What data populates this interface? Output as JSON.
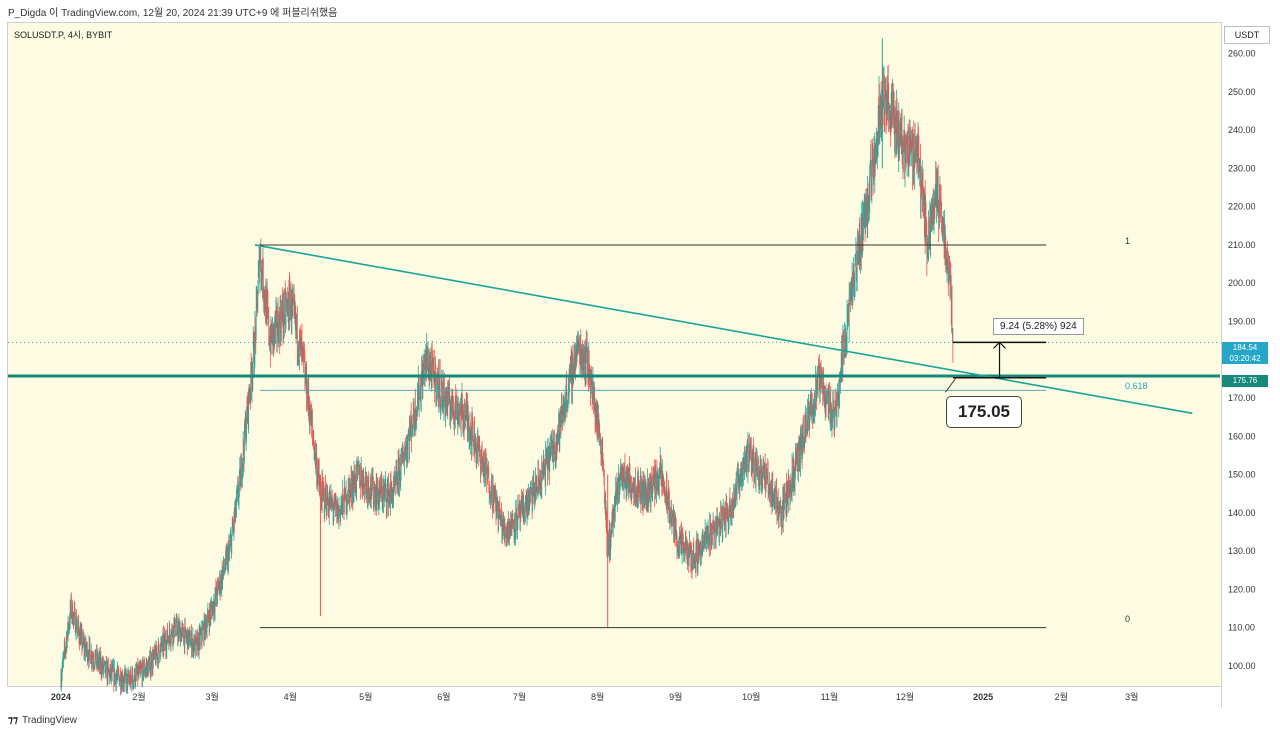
{
  "header": {
    "text": "P_Digda 이 TradingView.com, 12월 20, 2024 21:39 UTC+9 에 퍼블리쉬했음"
  },
  "symbol": {
    "text": "SOLUSDT.P, 4시, BYBIT"
  },
  "footer": {
    "brand": "TradingView",
    "logo": "tv-logo-icon"
  },
  "colors": {
    "background": "#fdfbe1",
    "up": "#26a69a",
    "down": "#ef5350",
    "trendline": "#1aa39a",
    "support": "#17897a",
    "priceTag": "#26a6c8"
  },
  "annotations": {
    "measure": "9.24 (5.28%) 924",
    "callout": "175.05",
    "fib_1": "1",
    "fib_0618": "0.618",
    "fib_0": "0"
  },
  "price_tag": {
    "price": "184.54",
    "timer": "03:20:42"
  },
  "support_tag": {
    "price": "175.76"
  },
  "chart_data": {
    "type": "candlestick",
    "title": "SOLUSDT.P, 4시, BYBIT",
    "yunit": "USDT",
    "ylim": [
      95,
      268
    ],
    "yticks": [
      100,
      110,
      120,
      130,
      140,
      150,
      160,
      170,
      180,
      190,
      200,
      210,
      220,
      230,
      240,
      250,
      260
    ],
    "ytick_labels": [
      "100.00",
      "110.00",
      "120.00",
      "130.00",
      "140.00",
      "150.00",
      "160.00",
      "170.00",
      "180.00",
      "190.00",
      "200.00",
      "210.00",
      "220.00",
      "230.00",
      "240.00",
      "250.00",
      "260.00"
    ],
    "xticks": [
      "2024",
      "2월",
      "3월",
      "4월",
      "5월",
      "6월",
      "7월",
      "8월",
      "9월",
      "10월",
      "11월",
      "12월",
      "2025",
      "2월",
      "3월"
    ],
    "price_path": [
      [
        "2024-01-01",
        97
      ],
      [
        "2024-01-05",
        115
      ],
      [
        "2024-01-10",
        105
      ],
      [
        "2024-01-20",
        98
      ],
      [
        "2024-01-28",
        96
      ],
      [
        "2024-02-05",
        100
      ],
      [
        "2024-02-15",
        110
      ],
      [
        "2024-02-24",
        105
      ],
      [
        "2024-03-01",
        115
      ],
      [
        "2024-03-08",
        130
      ],
      [
        "2024-03-12",
        148
      ],
      [
        "2024-03-18",
        185
      ],
      [
        "2024-03-20",
        208
      ],
      [
        "2024-03-24",
        185
      ],
      [
        "2024-04-01",
        195
      ],
      [
        "2024-04-06",
        180
      ],
      [
        "2024-04-13",
        145
      ],
      [
        "2024-04-20",
        140
      ],
      [
        "2024-04-28",
        150
      ],
      [
        "2024-05-05",
        145
      ],
      [
        "2024-05-12",
        145
      ],
      [
        "2024-05-20",
        165
      ],
      [
        "2024-05-25",
        180
      ],
      [
        "2024-06-01",
        170
      ],
      [
        "2024-06-10",
        165
      ],
      [
        "2024-06-18",
        150
      ],
      [
        "2024-06-25",
        135
      ],
      [
        "2024-07-02",
        140
      ],
      [
        "2024-07-09",
        148
      ],
      [
        "2024-07-16",
        160
      ],
      [
        "2024-07-24",
        183
      ],
      [
        "2024-07-28",
        180
      ],
      [
        "2024-08-03",
        155
      ],
      [
        "2024-08-05",
        130
      ],
      [
        "2024-08-10",
        150
      ],
      [
        "2024-08-20",
        145
      ],
      [
        "2024-08-26",
        150
      ],
      [
        "2024-09-02",
        132
      ],
      [
        "2024-09-08",
        128
      ],
      [
        "2024-09-15",
        135
      ],
      [
        "2024-09-22",
        140
      ],
      [
        "2024-09-29",
        155
      ],
      [
        "2024-10-06",
        150
      ],
      [
        "2024-10-13",
        140
      ],
      [
        "2024-10-20",
        155
      ],
      [
        "2024-10-28",
        175
      ],
      [
        "2024-11-03",
        165
      ],
      [
        "2024-11-08",
        190
      ],
      [
        "2024-11-13",
        210
      ],
      [
        "2024-11-17",
        225
      ],
      [
        "2024-11-22",
        250
      ],
      [
        "2024-11-25",
        245
      ],
      [
        "2024-12-01",
        235
      ],
      [
        "2024-12-06",
        235
      ],
      [
        "2024-12-10",
        210
      ],
      [
        "2024-12-13",
        225
      ],
      [
        "2024-12-16",
        215
      ],
      [
        "2024-12-19",
        200
      ],
      [
        "2024-12-20",
        184.54
      ]
    ],
    "levels": [
      {
        "name": "fib 1",
        "price": 210,
        "from": "2024-03-20",
        "to": "2025-01-26"
      },
      {
        "name": "fib 0.618",
        "price": 172,
        "from": "2024-03-20",
        "to": "2025-01-26"
      },
      {
        "name": "fib 0",
        "price": 110,
        "from": "2024-03-20",
        "to": "2025-01-26"
      },
      {
        "name": "support",
        "price": 175.76
      },
      {
        "name": "current price",
        "price": 184.54
      }
    ],
    "trendline": {
      "from": [
        "2024-03-18",
        210
      ],
      "to": [
        "2025-03-25",
        166
      ]
    },
    "measure": {
      "from_price": 175.3,
      "to_price": 184.54,
      "change": "9.24 (5.28%) 924"
    },
    "callout_value": 175.05
  }
}
